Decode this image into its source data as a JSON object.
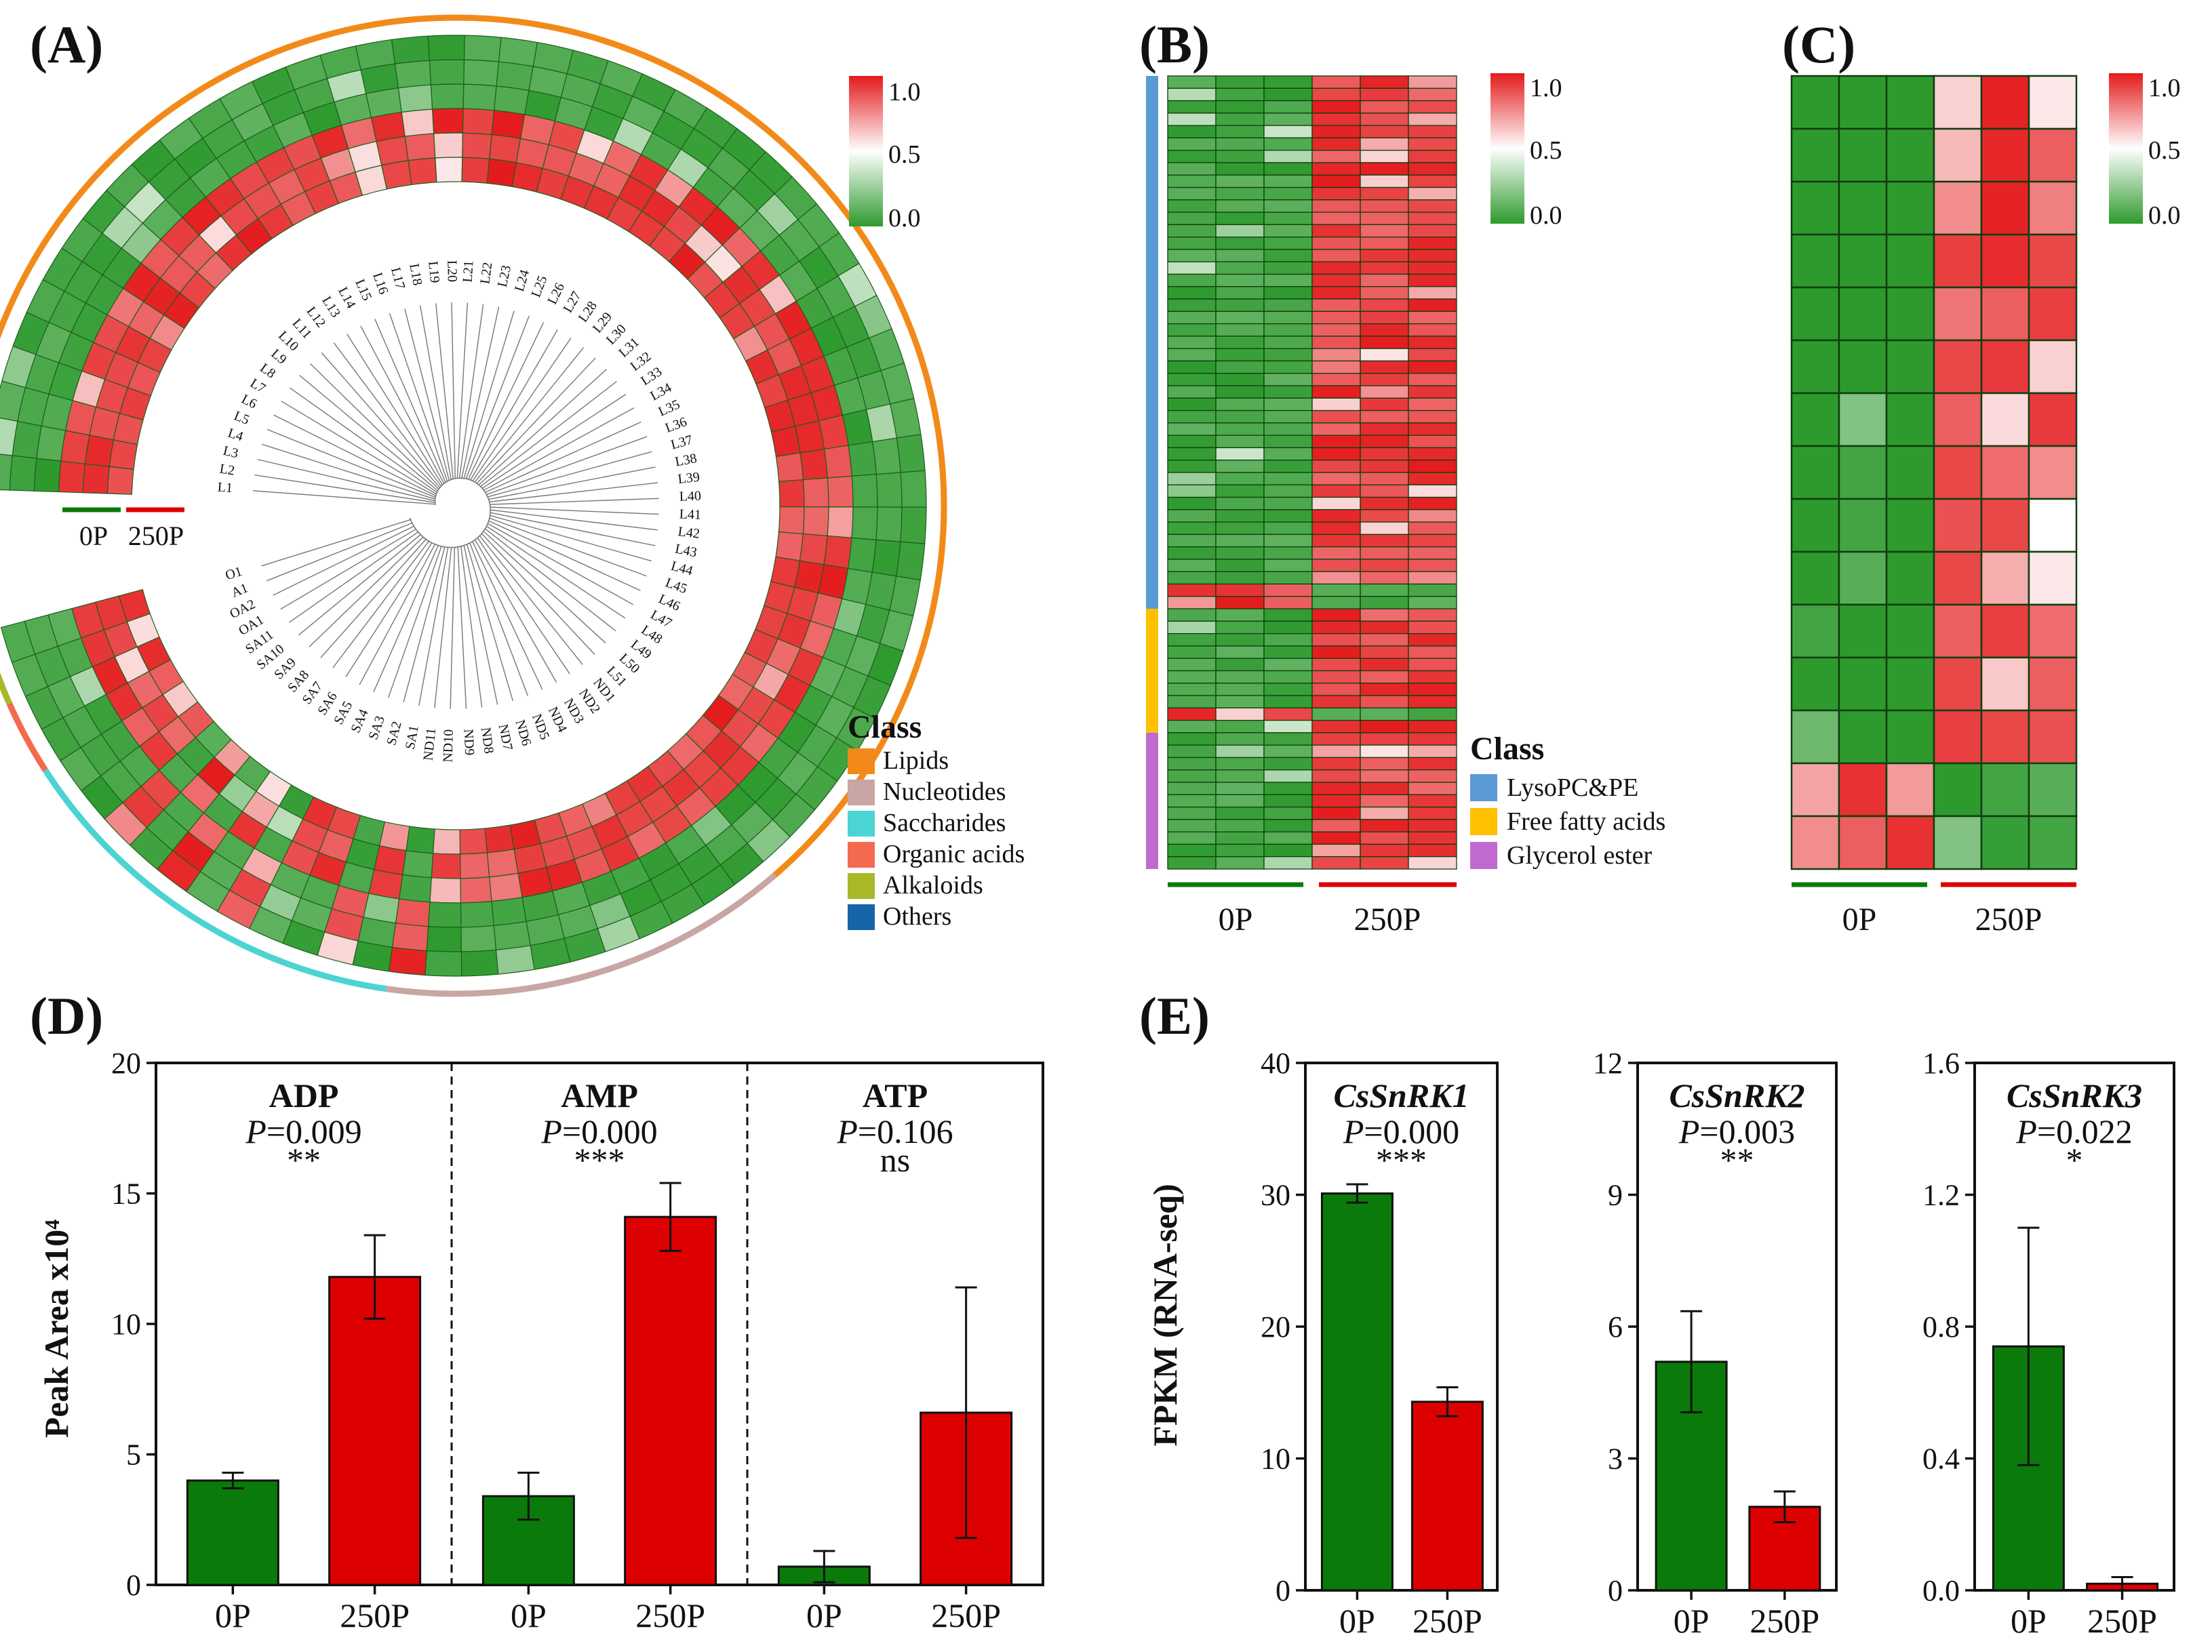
{
  "panels": {
    "a": "(A)",
    "b": "(B)",
    "c": "(C)",
    "d": "(D)",
    "e": "(E)"
  },
  "groups": {
    "g0": "0P",
    "g1": "250P"
  },
  "colorbar": {
    "max": "1.0",
    "mid": "0.5",
    "min": "0.0"
  },
  "colors": {
    "green": "#2e9a2e",
    "red": "#e41a1c",
    "white": "#ffffff",
    "dark_green": "#0a7a0a",
    "dark_red": "#dd0000"
  },
  "class_legend_a": {
    "title": "Class",
    "items": [
      {
        "label": "Lipids",
        "color": "#f28a1a"
      },
      {
        "label": "Nucleotides",
        "color": "#c9a6a3"
      },
      {
        "label": "Saccharides",
        "color": "#4cd3d3"
      },
      {
        "label": "Organic acids",
        "color": "#f46a4e"
      },
      {
        "label": "Alkaloids",
        "color": "#a9b827"
      },
      {
        "label": "Others",
        "color": "#1565a8"
      }
    ]
  },
  "class_legend_b": {
    "title": "Class",
    "items": [
      {
        "label": "LysoPC&PE",
        "color": "#5b9bd5"
      },
      {
        "label": "Free fatty acids",
        "color": "#ffc000"
      },
      {
        "label": "Glycerol ester",
        "color": "#c06ad1"
      }
    ]
  },
  "circular_labels": [
    "L1",
    "L2",
    "L3",
    "L4",
    "L5",
    "L6",
    "L7",
    "L8",
    "L9",
    "L10",
    "L11",
    "L12",
    "L13",
    "L14",
    "L15",
    "L16",
    "L17",
    "L18",
    "L19",
    "L20",
    "L21",
    "L22",
    "L23",
    "L24",
    "L25",
    "L26",
    "L27",
    "L28",
    "L29",
    "L30",
    "L31",
    "L32",
    "L33",
    "L34",
    "L35",
    "L36",
    "L37",
    "L38",
    "L39",
    "L40",
    "L41",
    "L42",
    "L43",
    "L44",
    "L45",
    "L46",
    "L47",
    "L48",
    "L49",
    "L50",
    "L51",
    "ND1",
    "ND2",
    "ND3",
    "ND4",
    "ND5",
    "ND6",
    "ND7",
    "ND8",
    "ND9",
    "ND10",
    "ND11",
    "SA1",
    "SA2",
    "SA3",
    "SA4",
    "SA5",
    "SA6",
    "SA7",
    "SA8",
    "SA9",
    "SA10",
    "SA11",
    "OA1",
    "OA2",
    "A1",
    "O1"
  ],
  "chart_data": [
    {
      "type": "bar",
      "panel": "D",
      "ylabel": "Peak Area x10⁴",
      "ylim": [
        0,
        20
      ],
      "yticks": [
        "0",
        "5",
        "10",
        "15",
        "20"
      ],
      "groups": [
        {
          "title": "ADP",
          "p": "=0.009",
          "sig": "**",
          "categories": [
            "0P",
            "250P"
          ],
          "values": [
            4.0,
            11.8
          ],
          "err": [
            0.3,
            1.6
          ]
        },
        {
          "title": "AMP",
          "p": "=0.000",
          "sig": "***",
          "categories": [
            "0P",
            "250P"
          ],
          "values": [
            3.4,
            14.1
          ],
          "err": [
            0.9,
            1.3
          ]
        },
        {
          "title": "ATP",
          "p": "=0.106",
          "sig": "ns",
          "categories": [
            "0P",
            "250P"
          ],
          "values": [
            0.7,
            6.6
          ],
          "err": [
            0.6,
            4.8
          ]
        }
      ]
    },
    {
      "type": "bar",
      "panel": "E",
      "ylabel": "FPKM (RNA-seq)",
      "subplots": [
        {
          "title": "CsSnRK1",
          "p": "=0.000",
          "sig": "***",
          "ylim": [
            0,
            40
          ],
          "yticks": [
            "0",
            "10",
            "20",
            "30",
            "40"
          ],
          "categories": [
            "0P",
            "250P"
          ],
          "values": [
            30.1,
            14.3
          ],
          "err": [
            0.7,
            1.1
          ]
        },
        {
          "title": "CsSnRK2",
          "p": "=0.003",
          "sig": "**",
          "ylim": [
            0,
            12
          ],
          "yticks": [
            "0",
            "3",
            "6",
            "9",
            "12"
          ],
          "categories": [
            "0P",
            "250P"
          ],
          "values": [
            5.2,
            1.9
          ],
          "err": [
            1.15,
            0.35
          ]
        },
        {
          "title": "CsSnRK3",
          "p": "=0.022",
          "sig": "*",
          "ylim": [
            0,
            1.6
          ],
          "yticks": [
            "0.0",
            "0.4",
            "0.8",
            "1.2",
            "1.6"
          ],
          "categories": [
            "0P",
            "250P"
          ],
          "values": [
            0.74,
            0.02
          ],
          "err": [
            0.36,
            0.02
          ]
        }
      ]
    },
    {
      "type": "heatmap",
      "panel": "A",
      "layout": "circular",
      "rows": 77,
      "columns": [
        "0P",
        "0P",
        "0P",
        "250P",
        "250P",
        "250P"
      ],
      "ylim": [
        0,
        1
      ]
    },
    {
      "type": "heatmap",
      "panel": "B",
      "rows": 64,
      "columns": [
        "0P",
        "0P",
        "0P",
        "250P",
        "250P",
        "250P"
      ],
      "ylim": [
        0,
        1
      ]
    },
    {
      "type": "heatmap",
      "panel": "C",
      "rows": 15,
      "columns": [
        "0P",
        "0P",
        "0P",
        "250P",
        "250P",
        "250P"
      ],
      "ylim": [
        0,
        1
      ],
      "values": [
        [
          0,
          0,
          0,
          0.6,
          0.98,
          0.55
        ],
        [
          0,
          0,
          0,
          0.65,
          0.97,
          0.85
        ],
        [
          0,
          0,
          0,
          0.75,
          0.98,
          0.78
        ],
        [
          0,
          0,
          0,
          0.92,
          0.96,
          0.9
        ],
        [
          0,
          0,
          0,
          0.8,
          0.85,
          0.92
        ],
        [
          0,
          0,
          0,
          0.9,
          0.93,
          0.6
        ],
        [
          0,
          0.2,
          0,
          0.85,
          0.58,
          0.93
        ],
        [
          0,
          0.05,
          0,
          0.9,
          0.82,
          0.75
        ],
        [
          0,
          0.05,
          0,
          0.88,
          0.9,
          0.5
        ],
        [
          0,
          0.1,
          0,
          0.9,
          0.68,
          0.55
        ],
        [
          0.05,
          0,
          0,
          0.85,
          0.92,
          0.82
        ],
        [
          0,
          0,
          0,
          0.9,
          0.62,
          0.85
        ],
        [
          0.15,
          0,
          0,
          0.92,
          0.9,
          0.88
        ],
        [
          0.7,
          0.95,
          0.72,
          0,
          0.05,
          0.1
        ],
        [
          0.75,
          0.85,
          0.95,
          0.2,
          0.02,
          0.05
        ]
      ]
    }
  ]
}
